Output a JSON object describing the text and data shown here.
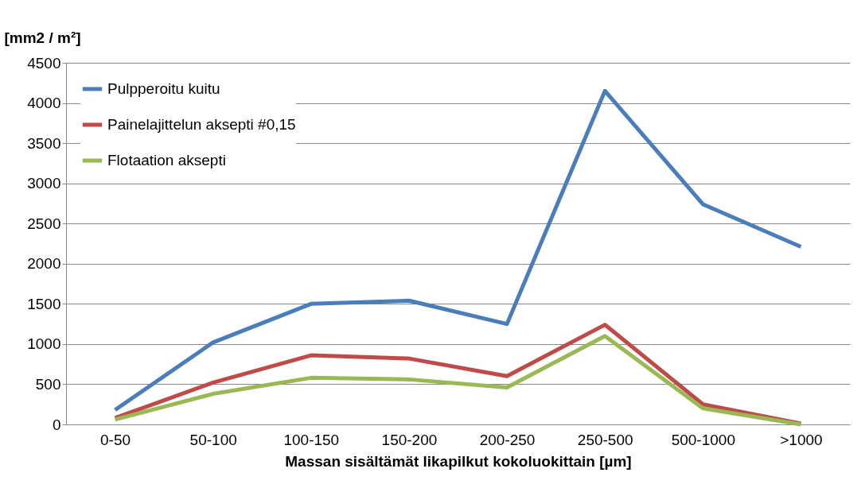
{
  "chart_data": {
    "type": "line",
    "xlabel": "Massan sisältämät likapilkut kokoluokittain [µm]",
    "ylabel": "[mm2 / m²]",
    "categories": [
      "0-50",
      "50-100",
      "100-150",
      "150-200",
      "200-250",
      "250-500",
      "500-1000",
      ">1000"
    ],
    "series": [
      {
        "name": "Pulpperoitu kuitu",
        "color": "#4a7ebb",
        "values": [
          180,
          1020,
          1500,
          1540,
          1250,
          4150,
          2740,
          2210
        ]
      },
      {
        "name": "Painelajittelun aksepti #0,15",
        "color": "#be4b48",
        "values": [
          80,
          520,
          860,
          820,
          600,
          1240,
          250,
          10
        ]
      },
      {
        "name": "Flotaation aksepti",
        "color": "#98b954",
        "values": [
          60,
          380,
          580,
          560,
          460,
          1100,
          200,
          0
        ]
      }
    ],
    "ylim": [
      0,
      4500
    ],
    "yticks": [
      0,
      500,
      1000,
      1500,
      2000,
      2500,
      3000,
      3500,
      4000,
      4500
    ],
    "grid": "y",
    "legend": "top left",
    "marker": "none",
    "line_style": "solid"
  }
}
